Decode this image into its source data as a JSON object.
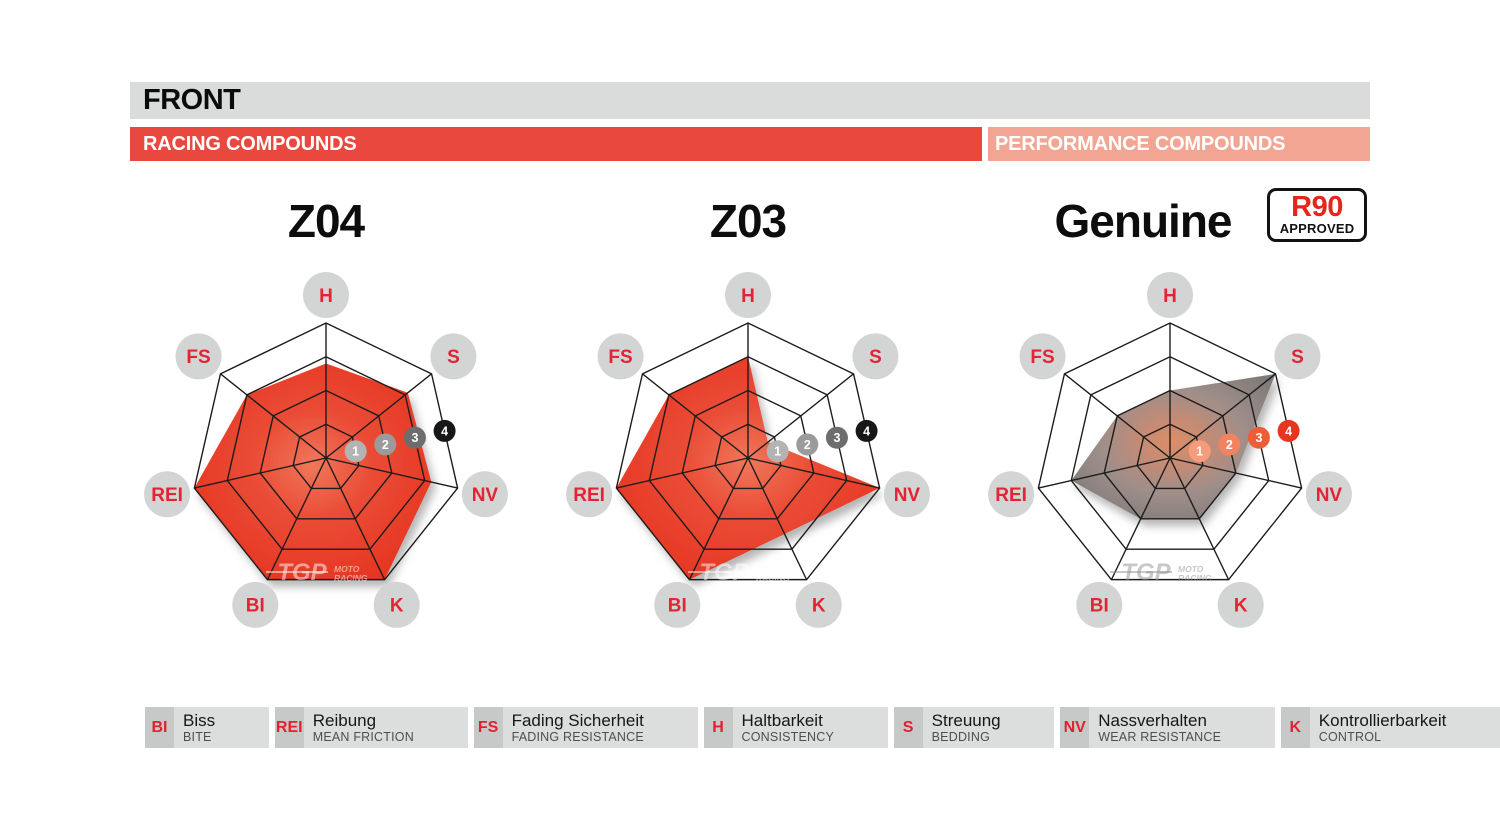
{
  "header": {
    "title": "FRONT",
    "racing": "RACING COMPOUNDS",
    "performance": "PERFORMANCE COMPOUNDS"
  },
  "colors": {
    "racing_bar": "#e8483e",
    "performance_bar": "#f3a593",
    "grid_line": "#1c1c1c",
    "axis_label_circle": "#d3d5d5",
    "axis_label_text": "#e42333",
    "red_fill_center": "#f0775b",
    "red_fill_mid": "#ea4c36",
    "red_fill_edge": "#e5331f",
    "gray_fill_center": "#dd8e67",
    "gray_fill_mid": "#c28b76",
    "gray_fill_outer": "#9f8e8a",
    "gray_fill_edge": "#7f7a78",
    "tick_colors_racing": [
      "#b3b3b3",
      "#9b9b9b",
      "#6d6d6d",
      "#171717"
    ],
    "tick_colors_performance": [
      "#f59c7d",
      "#f4825f",
      "#ef5c38",
      "#e93420"
    ]
  },
  "radar": {
    "axes": [
      "H",
      "S",
      "NV",
      "K",
      "BI",
      "REI",
      "FS"
    ],
    "scale_ticks": [
      "1",
      "2",
      "3",
      "4"
    ]
  },
  "charts": [
    {
      "title": "Z04",
      "group": "racing",
      "fill": "red",
      "watermark_variant": "light",
      "values": [
        2.8,
        3.1,
        3.2,
        4,
        4,
        4,
        3
      ]
    },
    {
      "title": "Z03",
      "group": "racing",
      "fill": "red",
      "watermark_variant": "light",
      "values": [
        3,
        0.75,
        4,
        2.5,
        4,
        4,
        3
      ]
    },
    {
      "title": "Genuine",
      "group": "performance",
      "fill": "gray",
      "watermark_variant": "dark",
      "values": [
        2,
        4,
        2,
        2,
        2,
        3,
        2
      ],
      "badge": {
        "line1": "R90",
        "line2": "APPROVED"
      }
    }
  ],
  "watermark": {
    "brand": "TGP",
    "line1": "MOTO",
    "line2": "RACING"
  },
  "legend": {
    "items": [
      {
        "abbr": "BI",
        "de": "Biss",
        "en": "BITE"
      },
      {
        "abbr": "REI",
        "de": "Reibung",
        "en": "MEAN FRICTION"
      },
      {
        "abbr": "FS",
        "de": "Fading Sicherheit",
        "en": "FADING RESISTANCE"
      },
      {
        "abbr": "H",
        "de": "Haltbarkeit",
        "en": "CONSISTENCY"
      },
      {
        "abbr": "S",
        "de": "Streuung",
        "en": "BEDDING"
      },
      {
        "abbr": "NV",
        "de": "Nassverhalten",
        "en": "WEAR RESISTANCE"
      },
      {
        "abbr": "K",
        "de": "Kontrollierbarkeit",
        "en": "CONTROL"
      }
    ]
  },
  "chart_data": [
    {
      "type": "radar",
      "title": "Z04",
      "group": "RACING COMPOUNDS",
      "categories": [
        "H",
        "S",
        "NV",
        "K",
        "BI",
        "REI",
        "FS"
      ],
      "category_names": [
        "Haltbarkeit / Consistency",
        "Streuung / Bedding",
        "Nassverhalten / Wear Resistance",
        "Kontrollierbarkeit / Control",
        "Biss / Bite",
        "Reibung / Mean Friction",
        "Fading Sicherheit / Fading Resistance"
      ],
      "values": [
        2.8,
        3.1,
        3.2,
        4,
        4,
        4,
        3
      ],
      "scale": {
        "min": 0,
        "max": 4,
        "ticks": [
          1,
          2,
          3,
          4
        ]
      },
      "rings": 4,
      "grid": true,
      "legend_position": "none"
    },
    {
      "type": "radar",
      "title": "Z03",
      "group": "RACING COMPOUNDS",
      "categories": [
        "H",
        "S",
        "NV",
        "K",
        "BI",
        "REI",
        "FS"
      ],
      "values": [
        3,
        0.75,
        4,
        2.5,
        4,
        4,
        3
      ],
      "scale": {
        "min": 0,
        "max": 4,
        "ticks": [
          1,
          2,
          3,
          4
        ]
      },
      "rings": 4,
      "grid": true,
      "legend_position": "none"
    },
    {
      "type": "radar",
      "title": "Genuine (R90 APPROVED)",
      "group": "PERFORMANCE COMPOUNDS",
      "categories": [
        "H",
        "S",
        "NV",
        "K",
        "BI",
        "REI",
        "FS"
      ],
      "values": [
        2,
        4,
        2,
        2,
        2,
        3,
        2
      ],
      "scale": {
        "min": 0,
        "max": 4,
        "ticks": [
          1,
          2,
          3,
          4
        ]
      },
      "rings": 4,
      "grid": true,
      "legend_position": "none"
    }
  ]
}
